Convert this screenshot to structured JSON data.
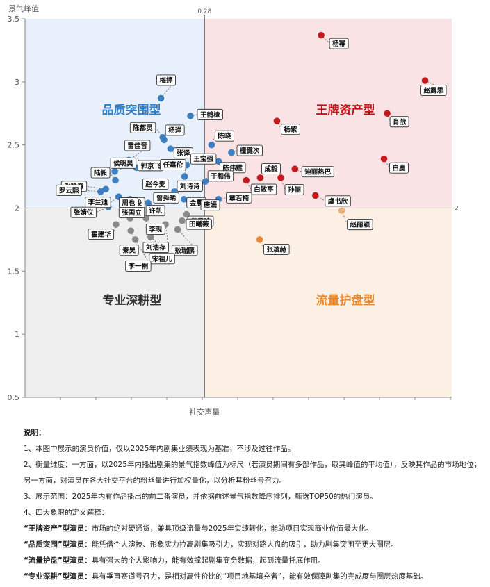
{
  "chart_data": {
    "type": "scatter",
    "ylabel": "景气峰值",
    "xlabel": "社交声量",
    "ylim": [
      0.5,
      3.5
    ],
    "yticks": [
      "0.5",
      "1",
      "1.5",
      "2",
      "2.5",
      "3",
      "3.5"
    ],
    "x_threshold_label": "0.28",
    "y_threshold_label": "2",
    "grid": false,
    "quadrants": [
      {
        "name": "品质突围型",
        "color": "#2f7ec7"
      },
      {
        "name": "王牌资产型",
        "color": "#c0141a"
      },
      {
        "name": "专业深耕型",
        "color": "#333333"
      },
      {
        "name": "流量护盘型",
        "color": "#e8892c"
      }
    ],
    "colors": {
      "blue": "#3d7fc1",
      "red": "#c51b1f",
      "gray": "#8a8a8a",
      "orange": "#e9893a",
      "lightorange": "#e9b27a"
    },
    "points": [
      {
        "name": "杨幂",
        "x": 0.462,
        "y": 3.37,
        "c": "red"
      },
      {
        "name": "赵露思",
        "x": 0.624,
        "y": 3.01,
        "c": "red"
      },
      {
        "name": "肖战",
        "x": 0.565,
        "y": 2.75,
        "c": "red"
      },
      {
        "name": "杨紫",
        "x": 0.393,
        "y": 2.69,
        "c": "red"
      },
      {
        "name": "白鹿",
        "x": 0.56,
        "y": 2.39,
        "c": "red"
      },
      {
        "name": "成毅",
        "x": 0.367,
        "y": 2.24,
        "c": "red"
      },
      {
        "name": "迪丽热巴",
        "x": 0.421,
        "y": 2.31,
        "c": "red"
      },
      {
        "name": "孙俪",
        "x": 0.399,
        "y": 2.24,
        "c": "red"
      },
      {
        "name": "白敬亭",
        "x": 0.345,
        "y": 2.22,
        "c": "red"
      },
      {
        "name": "虞书欣",
        "x": 0.453,
        "y": 2.1,
        "c": "red"
      },
      {
        "name": "赵丽颖",
        "x": 0.494,
        "y": 1.98,
        "c": "lightorange"
      },
      {
        "name": "张凌赫",
        "x": 0.366,
        "y": 1.75,
        "c": "orange"
      },
      {
        "name": "梅婷",
        "x": 0.212,
        "y": 2.87,
        "c": "blue"
      },
      {
        "name": "王鹤棣",
        "x": 0.258,
        "y": 2.73,
        "c": "blue"
      },
      {
        "name": "陈都灵",
        "x": 0.215,
        "y": 2.56,
        "c": "blue"
      },
      {
        "name": "杨洋",
        "x": 0.217,
        "y": 2.54,
        "c": "blue"
      },
      {
        "name": "陈晓",
        "x": 0.291,
        "y": 2.5,
        "c": "blue"
      },
      {
        "name": "张译",
        "x": 0.227,
        "y": 2.47,
        "c": "blue"
      },
      {
        "name": "檀健次",
        "x": 0.322,
        "y": 2.44,
        "c": "blue"
      },
      {
        "name": "雷佳音",
        "x": 0.162,
        "y": 2.38,
        "c": "blue"
      },
      {
        "name": "陈伟霆",
        "x": 0.302,
        "y": 2.37,
        "c": "blue"
      },
      {
        "name": "王宝强",
        "x": 0.252,
        "y": 2.34,
        "c": "blue"
      },
      {
        "name": "郭京飞",
        "x": 0.174,
        "y": 2.32,
        "c": "blue"
      },
      {
        "name": "侯明昊",
        "x": 0.14,
        "y": 2.29,
        "c": "blue"
      },
      {
        "name": "陆毅",
        "x": 0.141,
        "y": 2.22,
        "c": "blue"
      },
      {
        "name": "任嘉伦",
        "x": 0.249,
        "y": 2.25,
        "c": "blue"
      },
      {
        "name": "于和伟",
        "x": 0.281,
        "y": 2.21,
        "c": "blue"
      },
      {
        "name": "张晚意",
        "x": 0.126,
        "y": 2.15,
        "c": "blue"
      },
      {
        "name": "罗云熙",
        "x": 0.118,
        "y": 2.13,
        "c": "blue"
      },
      {
        "name": "赵今麦",
        "x": 0.188,
        "y": 2.19,
        "c": "blue"
      },
      {
        "name": "刘诗诗",
        "x": 0.233,
        "y": 2.13,
        "c": "blue"
      },
      {
        "name": "金晨",
        "x": 0.248,
        "y": 2.07,
        "c": "blue"
      },
      {
        "name": "章若楠",
        "x": 0.302,
        "y": 2.07,
        "c": "blue"
      },
      {
        "name": "李兰迪",
        "x": 0.146,
        "y": 2.09,
        "c": "blue"
      },
      {
        "name": "龚俊",
        "x": 0.164,
        "y": 2.07,
        "c": "blue"
      },
      {
        "name": "曾舜晞",
        "x": 0.207,
        "y": 2.07,
        "c": "blue"
      },
      {
        "name": "周也",
        "x": 0.162,
        "y": 2.03,
        "c": "blue"
      },
      {
        "name": "张婧仪",
        "x": 0.13,
        "y": 2.01,
        "c": "blue"
      },
      {
        "name": "许凯",
        "x": 0.192,
        "y": 2.04,
        "c": "blue"
      },
      {
        "name": "唐嫣",
        "x": 0.27,
        "y": 2.04,
        "c": "blue"
      },
      {
        "name": "霍建华",
        "x": 0.142,
        "y": 1.87,
        "c": "gray"
      },
      {
        "name": "张国立",
        "x": 0.164,
        "y": 1.92,
        "c": "gray"
      },
      {
        "name": "黄景瑜",
        "x": 0.252,
        "y": 1.95,
        "c": "gray"
      },
      {
        "name": "田曦薇",
        "x": 0.245,
        "y": 1.9,
        "c": "gray"
      },
      {
        "name": "李现",
        "x": 0.189,
        "y": 1.92,
        "c": "gray"
      },
      {
        "name": "秦昊",
        "x": 0.165,
        "y": 1.82,
        "c": "gray"
      },
      {
        "name": "刘浩存",
        "x": 0.219,
        "y": 1.87,
        "c": "gray"
      },
      {
        "name": "敖瑞鹏",
        "x": 0.238,
        "y": 1.83,
        "c": "gray"
      },
      {
        "name": "宋祖儿",
        "x": 0.196,
        "y": 1.77,
        "c": "gray"
      },
      {
        "name": "李一桐",
        "x": 0.172,
        "y": 1.75,
        "c": "gray"
      }
    ]
  },
  "notes": {
    "title": "说明：",
    "items": [
      "1、本图中展示的演员价值，仅以2025年内剧集业绩表现为基准，不涉及过往作品。",
      "2、衡量维度：一方面，以2025年内播出剧集的景气指数峰值为标尺（若演员期间有多部作品，取其峰值的平均值），反映其作品的市场地位；",
      "另一方面，对演员在各大社交平台的粉丝量进行加权量化，以分析其粉丝号召力。",
      "3、展示范围：2025年内有作品播出的前二番演员，并依据前述景气指数降序排列，甄选TOP50的热门演员。",
      "4、四大象限的定义解释："
    ],
    "defs": [
      {
        "term": "“王牌资产”型演员：",
        "text": "市场的绝对硬通货，兼具顶级流量与2025年实绩转化，能助项目实现商业价值最大化。"
      },
      {
        "term": "“品质突围”型演员：",
        "text": "能凭借个人演技、形象实力拉高剧集吸引力，实现对路人盘的吸引，助力剧集突围至更大圈层。"
      },
      {
        "term": "“流量护盘”型演员：",
        "text": "具有强大的个人影响力，能有效撑起剧集商务数据，起到流量托底作用。"
      },
      {
        "term": "“专业深耕”型演员：",
        "text": "具有垂直赛道号召力，是相对高性价比的“项目地基填充者”，能有效保障剧集的完成度与圈层热度基础。"
      }
    ]
  }
}
